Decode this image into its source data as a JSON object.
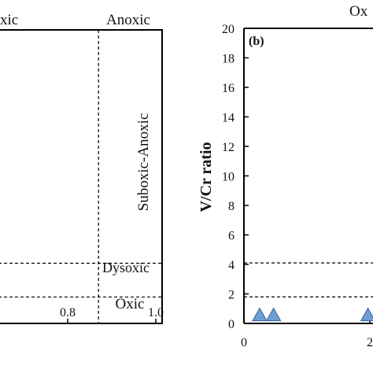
{
  "chart_data": [
    {
      "type": "scatter",
      "panel_label": "",
      "region_labels": [
        "xic",
        "Anoxic",
        "Suboxic-Anoxic",
        "Dysoxic",
        "Oxic"
      ],
      "x_ticks": [
        "0.8",
        "1.0"
      ],
      "xlim": [
        0.45,
        1.0
      ],
      "ylim": [
        0,
        20
      ],
      "vertical_lines": [
        0.87
      ],
      "horizontal_lines": [
        4.1,
        1.8
      ],
      "series": []
    },
    {
      "type": "scatter",
      "panel_label": "(b)",
      "ylabel": "V/Cr ratio",
      "top_label": "Ox",
      "y_ticks": [
        "0",
        "2",
        "4",
        "6",
        "8",
        "10",
        "12",
        "14",
        "16",
        "18",
        "20"
      ],
      "x_ticks": [
        "0",
        "2"
      ],
      "xlim": [
        0,
        2.7
      ],
      "ylim": [
        0,
        20
      ],
      "horizontal_lines": [
        4.1,
        1.8
      ],
      "marker_color": "#6f9ed4",
      "marker_edge": "#3a5f94",
      "series": [
        {
          "marker": "triangle",
          "points": [
            [
              0.25,
              0.5
            ],
            [
              0.47,
              0.5
            ],
            [
              1.97,
              0.5
            ]
          ]
        }
      ]
    }
  ]
}
